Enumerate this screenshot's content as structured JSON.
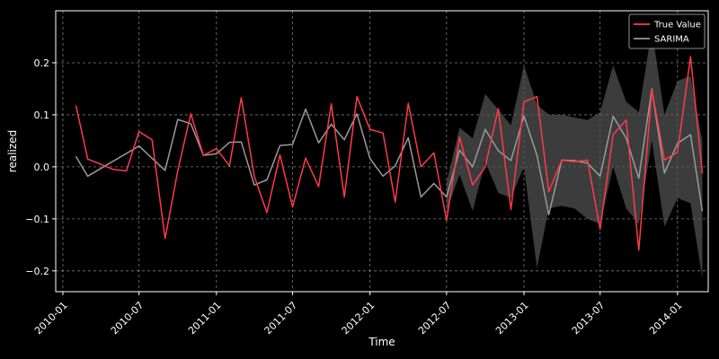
{
  "chart_data": {
    "type": "line",
    "title": "",
    "xlabel": "Time",
    "ylabel": "realized",
    "xlim": [
      "2009-12-15",
      "2014-03-15"
    ],
    "ylim": [
      -0.24,
      0.3
    ],
    "x_ticks": [
      "2010-01",
      "2010-07",
      "2011-01",
      "2011-07",
      "2012-01",
      "2012-07",
      "2013-01",
      "2013-07",
      "2014-01"
    ],
    "y_ticks": [
      -0.2,
      -0.1,
      0.0,
      0.1,
      0.2
    ],
    "y_tick_labels": [
      "−0.2",
      "−0.1",
      "0.0",
      "0.1",
      "0.2"
    ],
    "grid": true,
    "legend_position": "top-right",
    "colors": {
      "background": "#000000",
      "axes": "#ffffff",
      "grid": "#b0b0b0",
      "true_value": "#ff3b47",
      "sarima": "#9a9a9a",
      "confidence_band": "#555555"
    },
    "dates": [
      "2010-02",
      "2010-03",
      "2010-04",
      "2010-05",
      "2010-06",
      "2010-07",
      "2010-08",
      "2010-09",
      "2010-10",
      "2010-11",
      "2010-12",
      "2011-01",
      "2011-02",
      "2011-03",
      "2011-04",
      "2011-05",
      "2011-06",
      "2011-07",
      "2011-08",
      "2011-09",
      "2011-10",
      "2011-11",
      "2011-12",
      "2012-01",
      "2012-02",
      "2012-03",
      "2012-04",
      "2012-05",
      "2012-06",
      "2012-07",
      "2012-08",
      "2012-09",
      "2012-10",
      "2012-11",
      "2012-12",
      "2013-01",
      "2013-02",
      "2013-03",
      "2013-04",
      "2013-05",
      "2013-06",
      "2013-07",
      "2013-08",
      "2013-09",
      "2013-10",
      "2013-11",
      "2013-12",
      "2014-01",
      "2014-02",
      "2014-03"
    ],
    "series": [
      {
        "name": "True Value",
        "values": [
          0.118,
          0.015,
          0.005,
          -0.005,
          -0.008,
          0.068,
          0.052,
          -0.138,
          -0.008,
          0.102,
          0.022,
          0.035,
          0.002,
          0.133,
          -0.018,
          -0.088,
          0.023,
          -0.077,
          0.017,
          -0.038,
          0.121,
          -0.058,
          0.135,
          0.072,
          0.065,
          -0.068,
          0.122,
          0.0,
          0.027,
          -0.103,
          0.057,
          -0.035,
          0.0,
          0.112,
          -0.082,
          0.125,
          0.135,
          -0.048,
          0.013,
          0.01,
          0.013,
          -0.12,
          0.062,
          0.09,
          -0.16,
          0.148,
          0.013,
          0.028,
          0.212,
          -0.012
        ]
      },
      {
        "name": "SARIMA",
        "values": [
          0.02,
          -0.018,
          null,
          null,
          null,
          0.04,
          null,
          -0.007,
          0.091,
          0.083,
          0.022,
          0.025,
          0.047,
          0.048,
          -0.035,
          -0.025,
          0.041,
          0.043,
          0.111,
          0.046,
          0.082,
          0.052,
          0.102,
          0.016,
          -0.018,
          0.002,
          0.056,
          -0.058,
          -0.032,
          -0.058,
          0.032,
          0.0,
          0.072,
          0.031,
          0.012,
          0.098,
          0.022,
          -0.092,
          0.013,
          0.012,
          0.007,
          -0.018,
          0.097,
          0.055,
          -0.022,
          0.15,
          -0.012,
          0.045,
          0.062,
          -0.085
        ]
      }
    ],
    "confidence_band": {
      "dates": [
        "2012-07",
        "2012-08",
        "2012-09",
        "2012-10",
        "2012-11",
        "2012-12",
        "2013-01",
        "2013-02",
        "2013-03",
        "2013-04",
        "2013-05",
        "2013-06",
        "2013-07",
        "2013-08",
        "2013-09",
        "2013-10",
        "2013-11",
        "2013-12",
        "2014-01",
        "2014-02",
        "2014-03"
      ],
      "lower": [
        -0.085,
        -0.015,
        -0.085,
        0.01,
        -0.05,
        -0.06,
        0.0,
        -0.195,
        -0.08,
        -0.075,
        -0.08,
        -0.1,
        -0.11,
        0.0,
        -0.08,
        -0.11,
        0.05,
        -0.115,
        -0.06,
        -0.07,
        -0.215
      ],
      "upper": [
        -0.03,
        0.075,
        0.055,
        0.14,
        0.11,
        0.08,
        0.195,
        0.12,
        0.1,
        0.1,
        0.095,
        0.09,
        0.105,
        0.195,
        0.125,
        0.105,
        0.265,
        0.1,
        0.165,
        0.175,
        0.05
      ]
    }
  }
}
